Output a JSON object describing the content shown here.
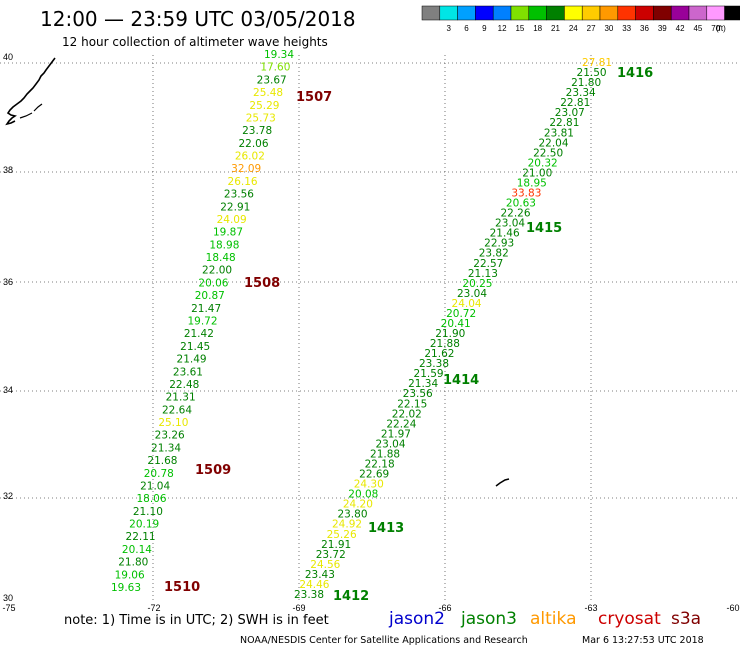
{
  "header": {
    "title": "12:00 — 23:59 UTC 03/05/2018",
    "subtitle": "12 hour collection of altimeter wave heights"
  },
  "legend": {
    "colors": [
      "#808080",
      "#00e5e5",
      "#00a0ff",
      "#0000ff",
      "#0080ff",
      "#80e000",
      "#00c000",
      "#008000",
      "#ffff00",
      "#ffcc00",
      "#ff9900",
      "#ff3300",
      "#cc0000",
      "#800000",
      "#990099",
      "#cc66cc",
      "#ff99ff",
      "#000000"
    ],
    "labels": [
      "3",
      "6",
      "9",
      "12",
      "15",
      "18",
      "21",
      "24",
      "27",
      "30",
      "33",
      "36",
      "39",
      "42",
      "45",
      "70"
    ],
    "unit": "(ft)"
  },
  "axes": {
    "lat_labels": [
      "40",
      "38",
      "36",
      "34",
      "32",
      "30"
    ],
    "lon_labels": [
      "-75",
      "-72",
      "-69",
      "-66",
      "-63",
      "-60"
    ]
  },
  "passes": [
    {
      "id": "1507",
      "color": "#800000"
    },
    {
      "id": "1508",
      "color": "#800000"
    },
    {
      "id": "1509",
      "color": "#800000"
    },
    {
      "id": "1510",
      "color": "#800000"
    },
    {
      "id": "1412",
      "color": "#008000"
    },
    {
      "id": "1413",
      "color": "#008000"
    },
    {
      "id": "1414",
      "color": "#008000"
    },
    {
      "id": "1415",
      "color": "#008000"
    },
    {
      "id": "1416",
      "color": "#008000"
    }
  ],
  "tracks": {
    "track_a": [
      "19.34",
      "17.60",
      "23.67",
      "25.48",
      "25.29",
      "25.73",
      "23.78",
      "22.06",
      "26.02",
      "32.09",
      "26.16",
      "23.56",
      "22.91",
      "24.09",
      "19.87",
      "18.98",
      "18.48",
      "22.00",
      "20.06",
      "20.87",
      "21.47",
      "19.72",
      "21.42",
      "21.45",
      "21.49",
      "23.61",
      "22.48",
      "21.31",
      "22.64",
      "25.10",
      "23.26",
      "21.34",
      "21.68",
      "20.78",
      "21.04",
      "18.06",
      "21.10",
      "20.19",
      "22.11",
      "20.14",
      "21.80",
      "19.06",
      "19.63"
    ],
    "track_b": [
      "27.81",
      "21.50",
      "21.80",
      "23.34",
      "22.81",
      "23.07",
      "22.81",
      "23.81",
      "22.04",
      "22.50",
      "20.32",
      "21.00",
      "18.95",
      "33.83",
      "20.63",
      "22.26",
      "23.04",
      "21.46",
      "22.93",
      "23.82",
      "22.57",
      "21.13",
      "20.25",
      "23.04",
      "24.04",
      "20.72",
      "20.41",
      "21.90",
      "21.88",
      "21.62",
      "23.38",
      "21.59",
      "21.34",
      "23.56",
      "22.15",
      "22.02",
      "22.24",
      "21.97",
      "23.04",
      "21.88",
      "22.18",
      "22.69",
      "24.30",
      "20.08",
      "24.20",
      "23.80",
      "24.92",
      "25.26",
      "21.91",
      "23.72",
      "24.56",
      "23.43",
      "24.46",
      "23.38"
    ]
  },
  "footer": {
    "note": "note: 1) Time is in UTC; 2) SWH is in feet",
    "satellites": [
      {
        "name": "jason2",
        "color": "#0000cc"
      },
      {
        "name": "jason3",
        "color": "#008000"
      },
      {
        "name": "altika",
        "color": "#ff9900"
      },
      {
        "name": "cryosat",
        "color": "#cc0000"
      },
      {
        "name": "s3a",
        "color": "#800000"
      }
    ],
    "credit": "NOAA/NESDIS Center for Satellite Applications and Research",
    "generated": "Mar  6 13:27:53 UTC 2018"
  }
}
